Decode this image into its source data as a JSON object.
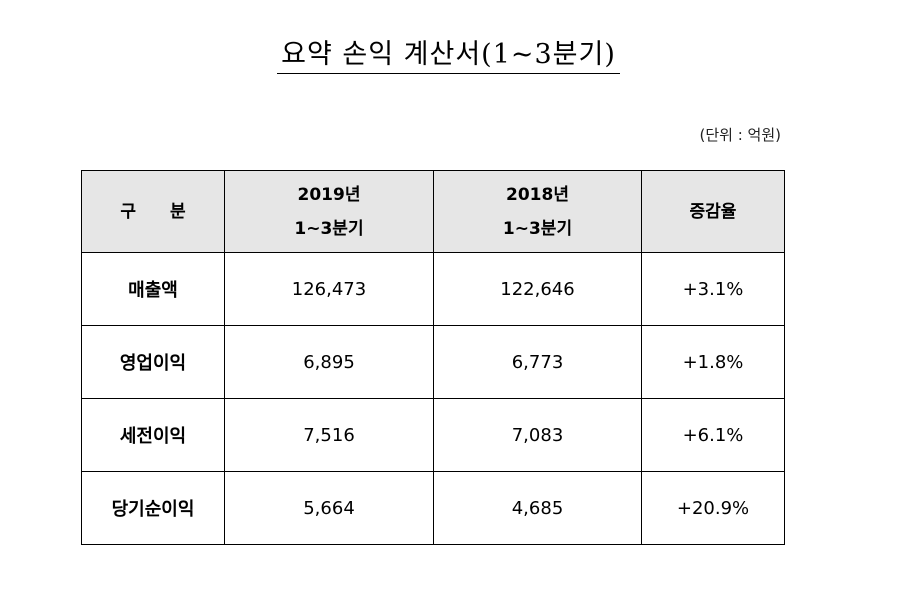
{
  "title": "요약 손익 계산서(1~3분기)",
  "unit": "(단위 : 억원)",
  "table": {
    "headers": [
      {
        "line1": "구 분",
        "line2": ""
      },
      {
        "line1": "2019년",
        "line2": "1~3분기"
      },
      {
        "line1": "2018년",
        "line2": "1~3분기"
      },
      {
        "line1": "증감율",
        "line2": ""
      }
    ],
    "rows": [
      {
        "label": "매출액",
        "y2019": "126,473",
        "y2018": "122,646",
        "change": "+3.1%"
      },
      {
        "label": "영업이익",
        "y2019": "6,895",
        "y2018": "6,773",
        "change": "+1.8%"
      },
      {
        "label": "세전이익",
        "y2019": "7,516",
        "y2018": "7,083",
        "change": "+6.1%"
      },
      {
        "label": "당기순이익",
        "y2019": "5,664",
        "y2018": "4,685",
        "change": "+20.9%"
      }
    ]
  }
}
